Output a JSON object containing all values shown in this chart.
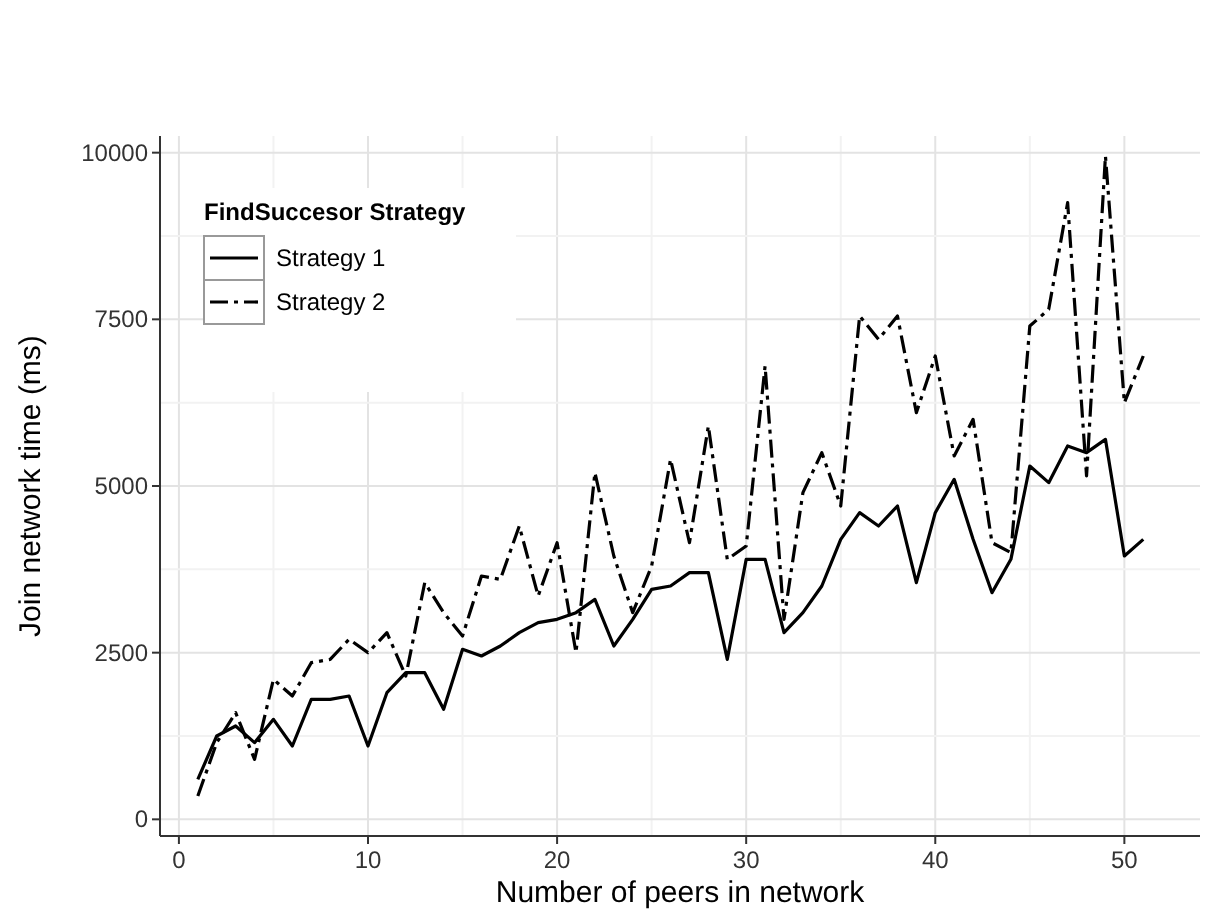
{
  "chart_data": {
    "type": "line",
    "xlabel": "Number of peers in network",
    "ylabel": "Join network time (ms)",
    "legend_title": "FindSuccesor Strategy",
    "legend": "top left",
    "grid": true,
    "x": [
      1,
      2,
      3,
      4,
      5,
      6,
      7,
      8,
      9,
      10,
      11,
      12,
      13,
      14,
      15,
      16,
      17,
      18,
      19,
      20,
      21,
      22,
      23,
      24,
      25,
      26,
      27,
      28,
      29,
      30,
      31,
      32,
      33,
      34,
      35,
      36,
      37,
      38,
      39,
      40,
      41,
      42,
      43,
      44,
      45,
      46,
      47,
      48,
      49,
      50,
      51
    ],
    "xlim": [
      -1,
      54
    ],
    "xticks": [
      0,
      {
        "value": 5,
        "label": null
      },
      10,
      {
        "value": 15,
        "label": null
      },
      20,
      {
        "value": 25,
        "label": null
      },
      30,
      {
        "value": 35,
        "label": null
      },
      40,
      {
        "value": 45,
        "label": null
      },
      50
    ],
    "ylim": [
      -250,
      10250
    ],
    "yticks": [
      0,
      {
        "value": 1250,
        "label": null
      },
      2500,
      {
        "value": 3750,
        "label": null
      },
      5000,
      {
        "value": 6250,
        "label": null
      },
      7500,
      {
        "value": 8750,
        "label": null
      },
      10000
    ],
    "series": [
      {
        "name": "Strategy 1",
        "color": "#000000",
        "line_style": "solid",
        "values": [
          600,
          1250,
          1400,
          1150,
          1500,
          1100,
          1800,
          1800,
          1850,
          1100,
          1900,
          2200,
          2200,
          1650,
          2550,
          2450,
          2600,
          2800,
          2950,
          3000,
          3100,
          3300,
          2600,
          3000,
          3450,
          3500,
          3700,
          3700,
          2400,
          3900,
          3900,
          2800,
          3100,
          3500,
          4200,
          4600,
          4400,
          4700,
          3550,
          4600,
          5100,
          4200,
          3400,
          3900,
          5300,
          5050,
          5600,
          5500,
          5700,
          3950,
          4200
        ]
      },
      {
        "name": "Strategy 2",
        "color": "#000000",
        "line_style": "dashed",
        "values": [
          350,
          1150,
          1600,
          900,
          2100,
          1850,
          2350,
          2400,
          2700,
          2500,
          2800,
          2150,
          3550,
          3100,
          2750,
          3650,
          3600,
          4400,
          3350,
          4150,
          2500,
          5200,
          3950,
          3100,
          3800,
          5400,
          4150,
          5900,
          3900,
          4100,
          6800,
          3000,
          4900,
          5500,
          4700,
          7550,
          7200,
          7550,
          6100,
          6950,
          5450,
          6000,
          4150,
          4000,
          7400,
          7650,
          9250,
          5150,
          9950,
          6250,
          6950
        ]
      }
    ]
  }
}
